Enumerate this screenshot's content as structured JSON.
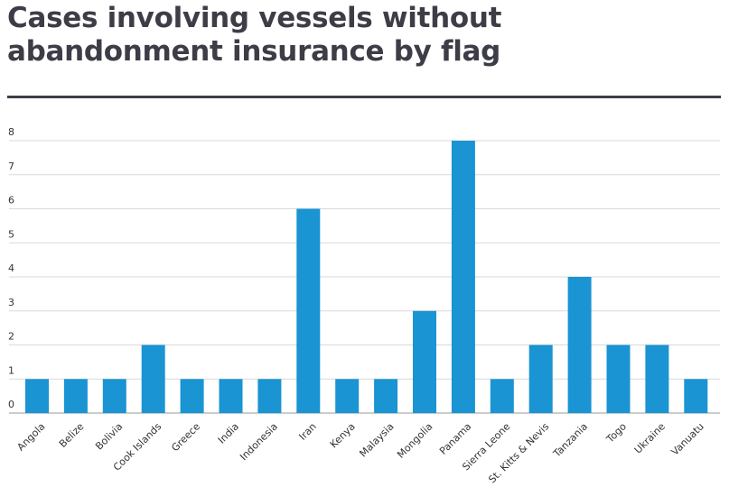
{
  "title": "Cases involving vessels without abandonment insurance by flag",
  "colors": {
    "bar": "#1a94d2",
    "title": "#3d3d47",
    "grid": "#d9d9d9"
  },
  "chart_data": {
    "type": "bar",
    "title": "Cases involving vessels without abandonment insurance by flag",
    "xlabel": "",
    "ylabel": "",
    "ylim": [
      0,
      8
    ],
    "yticks": [
      0,
      1,
      2,
      3,
      4,
      5,
      6,
      7,
      8
    ],
    "grid": true,
    "categories": [
      "Angola",
      "Belize",
      "Bolivia",
      "Cook Islands",
      "Greece",
      "India",
      "Indonesia",
      "Iran",
      "Kenya",
      "Malaysia",
      "Mongolia",
      "Panama",
      "Sierra Leone",
      "St. Kitts & Nevis",
      "Tanzania",
      "Togo",
      "Ukraine",
      "Vanuatu"
    ],
    "values": [
      1,
      1,
      1,
      2,
      1,
      1,
      1,
      6,
      1,
      1,
      3,
      8,
      1,
      2,
      4,
      2,
      2,
      1
    ]
  }
}
